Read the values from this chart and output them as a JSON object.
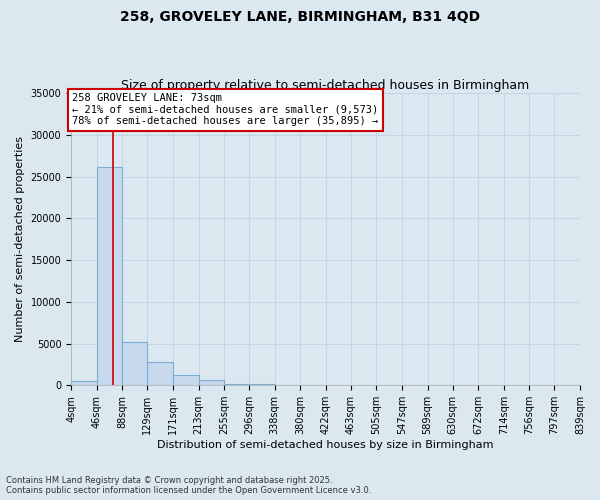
{
  "title": "258, GROVELEY LANE, BIRMINGHAM, B31 4QD",
  "subtitle": "Size of property relative to semi-detached houses in Birmingham",
  "xlabel": "Distribution of semi-detached houses by size in Birmingham",
  "ylabel": "Number of semi-detached properties",
  "bar_edges": [
    4,
    46,
    88,
    129,
    171,
    213,
    255,
    296,
    338,
    380,
    422,
    463,
    505,
    547,
    589,
    630,
    672,
    714,
    756,
    797,
    839
  ],
  "bar_heights": [
    500,
    26200,
    5200,
    2800,
    1200,
    600,
    200,
    100,
    50,
    30,
    20,
    10,
    5,
    5,
    5,
    5,
    3,
    3,
    2,
    2
  ],
  "bar_color": "#c8d8ed",
  "bar_edgecolor": "#7aaed4",
  "vline_x": 73,
  "vline_color": "#cc0000",
  "annotation_text": "258 GROVELEY LANE: 73sqm\n← 21% of semi-detached houses are smaller (9,573)\n78% of semi-detached houses are larger (35,895) →",
  "annotation_box_color": "#ffffff",
  "annotation_box_edgecolor": "#cc0000",
  "ylim": [
    0,
    35000
  ],
  "yticks": [
    0,
    5000,
    10000,
    15000,
    20000,
    25000,
    30000,
    35000
  ],
  "grid_color": "#c5d5e5",
  "background_color": "#dce8f0",
  "footnote": "Contains HM Land Registry data © Crown copyright and database right 2025.\nContains public sector information licensed under the Open Government Licence v3.0.",
  "title_fontsize": 10,
  "subtitle_fontsize": 9,
  "label_fontsize": 8,
  "tick_fontsize": 7,
  "annotation_fontsize": 7.5,
  "footnote_fontsize": 6
}
